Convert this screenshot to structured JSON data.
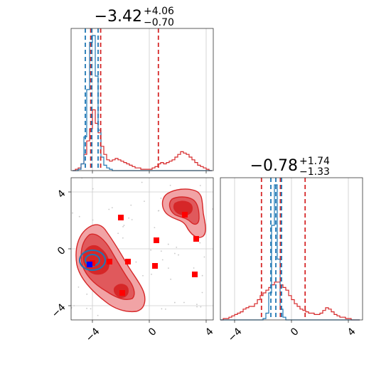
{
  "colors": {
    "red": "#d62728",
    "red_fill_light": "#f1a3a5",
    "red_fill_mid": "#e0595c",
    "red_fill_dark": "#d62728",
    "blue": "#1f77b4",
    "marker_red": "#ff0000",
    "marker_blue": "#0000ff",
    "grid": "#cccccc"
  },
  "chart_data": {
    "type": "corner",
    "parameters": 2,
    "grid": true,
    "titles": [
      {
        "median": "−3.42",
        "plus": "+4.06",
        "minus": "−0.70"
      },
      {
        "median": "−0.78",
        "plus": "+1.74",
        "minus": "−1.33"
      }
    ],
    "ranges": {
      "param1": [
        -5.5,
        4.5
      ],
      "param2": [
        -5.0,
        5.0
      ]
    },
    "ticks": {
      "param1": [
        {
          "value": -4,
          "label": "−4"
        },
        {
          "value": 0,
          "label": "0"
        },
        {
          "value": 4,
          "label": "4"
        }
      ],
      "param2": [
        {
          "value": -4,
          "label": "−4"
        },
        {
          "value": 0,
          "label": "0"
        },
        {
          "value": 4,
          "label": "4"
        }
      ]
    },
    "hist_param1": {
      "bin_centers": [
        -5.3,
        -5.1,
        -4.9,
        -4.7,
        -4.5,
        -4.3,
        -4.1,
        -3.9,
        -3.7,
        -3.5,
        -3.3,
        -3.1,
        -2.9,
        -2.7,
        -2.5,
        -2.3,
        -2.1,
        -1.9,
        -1.7,
        -1.5,
        -1.3,
        -1.1,
        -0.9,
        -0.7,
        -0.5,
        -0.3,
        -0.1,
        0.1,
        0.3,
        0.5,
        0.7,
        0.9,
        1.1,
        1.3,
        1.5,
        1.7,
        1.9,
        2.1,
        2.3,
        2.5,
        2.7,
        2.9,
        3.1,
        3.3,
        3.5,
        3.7,
        3.9,
        4.1,
        4.3
      ],
      "series": [
        {
          "color": "red",
          "values": [
            0,
            0.01,
            0.02,
            0.05,
            0.12,
            0.22,
            0.31,
            0.45,
            0.35,
            0.28,
            0.18,
            0.12,
            0.08,
            0.07,
            0.08,
            0.09,
            0.08,
            0.07,
            0.06,
            0.05,
            0.04,
            0.03,
            0.02,
            0.02,
            0.01,
            0.01,
            0.01,
            0.01,
            0.02,
            0.03,
            0.05,
            0.06,
            0.05,
            0.06,
            0.07,
            0.08,
            0.1,
            0.12,
            0.14,
            0.13,
            0.12,
            0.1,
            0.08,
            0.06,
            0.04,
            0.03,
            0.02,
            0.01,
            0
          ]
        },
        {
          "color": "blue",
          "values": [
            0,
            0,
            0.01,
            0.05,
            0.25,
            0.6,
            0.95,
            1.0,
            0.7,
            0.3,
            0.1,
            0.04,
            0.02,
            0.01,
            0,
            0,
            0,
            0,
            0,
            0,
            0,
            0,
            0,
            0,
            0,
            0,
            0,
            0,
            0,
            0,
            0,
            0,
            0,
            0,
            0,
            0,
            0,
            0,
            0,
            0,
            0,
            0,
            0,
            0,
            0,
            0,
            0,
            0,
            0
          ]
        }
      ],
      "quantile_lines": [
        {
          "color": "red",
          "values": [
            -4.12,
            -3.42,
            0.64
          ]
        },
        {
          "color": "blue",
          "values": [
            -4.5,
            -4.05,
            -3.6
          ]
        }
      ]
    },
    "hist_param2": {
      "bin_centers": [
        -4.9,
        -4.7,
        -4.5,
        -4.3,
        -4.1,
        -3.9,
        -3.7,
        -3.5,
        -3.3,
        -3.1,
        -2.9,
        -2.7,
        -2.5,
        -2.3,
        -2.1,
        -1.9,
        -1.7,
        -1.5,
        -1.3,
        -1.1,
        -0.9,
        -0.7,
        -0.5,
        -0.3,
        -0.1,
        0.1,
        0.3,
        0.5,
        0.7,
        0.9,
        1.1,
        1.3,
        1.5,
        1.7,
        1.9,
        2.1,
        2.3,
        2.5,
        2.7,
        2.9,
        3.1,
        3.3,
        3.5,
        3.7,
        3.9,
        4.1,
        4.3,
        4.5,
        4.7
      ],
      "series": [
        {
          "color": "red",
          "values": [
            0,
            0.01,
            0.01,
            0.02,
            0.03,
            0.04,
            0.05,
            0.06,
            0.08,
            0.09,
            0.1,
            0.1,
            0.12,
            0.15,
            0.18,
            0.2,
            0.22,
            0.24,
            0.26,
            0.28,
            0.28,
            0.26,
            0.24,
            0.22,
            0.18,
            0.15,
            0.12,
            0.1,
            0.08,
            0.07,
            0.06,
            0.05,
            0.05,
            0.04,
            0.04,
            0.05,
            0.07,
            0.09,
            0.08,
            0.06,
            0.04,
            0.03,
            0.02,
            0.02,
            0.01,
            0.01,
            0,
            0,
            0
          ]
        },
        {
          "color": "blue",
          "values": [
            0,
            0,
            0,
            0,
            0,
            0,
            0,
            0,
            0,
            0,
            0,
            0,
            0,
            0,
            0,
            0.01,
            0.05,
            0.2,
            0.7,
            1.0,
            0.45,
            0.08,
            0.02,
            0,
            0,
            0,
            0,
            0,
            0,
            0,
            0,
            0,
            0,
            0,
            0,
            0,
            0,
            0,
            0,
            0,
            0,
            0,
            0,
            0,
            0,
            0,
            0,
            0,
            0
          ]
        }
      ],
      "quantile_lines": [
        {
          "color": "red",
          "values": [
            -2.11,
            -0.78,
            0.96
          ]
        },
        {
          "color": "blue",
          "values": [
            -1.45,
            -1.1,
            -0.7
          ]
        }
      ]
    },
    "scatter_2d": {
      "red_markers": [
        {
          "x": -2.0,
          "y": 2.2
        },
        {
          "x": 2.5,
          "y": 2.4
        },
        {
          "x": 0.5,
          "y": 0.6
        },
        {
          "x": 3.3,
          "y": 0.7
        },
        {
          "x": -2.8,
          "y": -0.9
        },
        {
          "x": -1.5,
          "y": -0.9
        },
        {
          "x": 0.4,
          "y": -1.2
        },
        {
          "x": 3.2,
          "y": -1.8
        },
        {
          "x": -1.9,
          "y": -3.1
        },
        {
          "x": -4.0,
          "y": -1.0
        }
      ],
      "blue_marker": {
        "x": -4.2,
        "y": -1.1
      },
      "red_contour_levels": 3,
      "blue_contour_levels": 2
    }
  }
}
